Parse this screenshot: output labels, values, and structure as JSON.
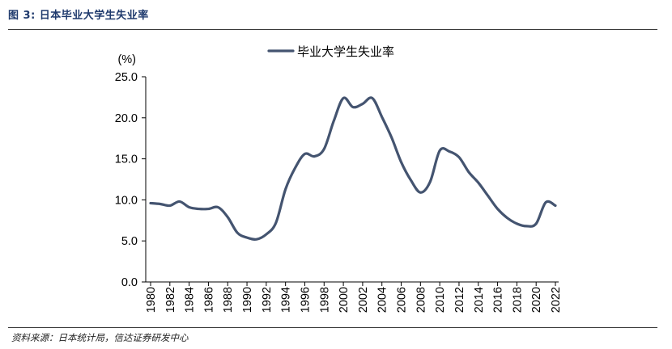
{
  "figure": {
    "title": "图 3:  日本毕业大学生失业率",
    "source": "资料来源：日本统计局，信达证券研发中心"
  },
  "chart_data": {
    "type": "line",
    "ylabel": "(%)",
    "ylim": [
      0,
      25
    ],
    "yticks": [
      "25.0",
      "20.0",
      "15.0",
      "10.0",
      "5.0",
      "0.0"
    ],
    "xlim": [
      1980,
      2022
    ],
    "xticks": [
      "1980",
      "1982",
      "1984",
      "1986",
      "1988",
      "1990",
      "1992",
      "1994",
      "1996",
      "1998",
      "2000",
      "2002",
      "2004",
      "2006",
      "2008",
      "2010",
      "2012",
      "2014",
      "2016",
      "2018",
      "2020",
      "2022"
    ],
    "grid": false,
    "legend_position": "top-center",
    "series": [
      {
        "name": "毕业大学生失业率",
        "color": "#445470",
        "x": [
          1980,
          1981,
          1982,
          1983,
          1984,
          1985,
          1986,
          1987,
          1988,
          1989,
          1990,
          1991,
          1992,
          1993,
          1994,
          1995,
          1996,
          1997,
          1998,
          1999,
          2000,
          2001,
          2002,
          2003,
          2004,
          2005,
          2006,
          2007,
          2008,
          2009,
          2010,
          2011,
          2012,
          2013,
          2014,
          2015,
          2016,
          2017,
          2018,
          2019,
          2020,
          2021,
          2022
        ],
        "y": [
          9.6,
          9.5,
          9.3,
          9.8,
          9.1,
          8.9,
          8.9,
          9.1,
          7.9,
          6.0,
          5.4,
          5.2,
          5.8,
          7.2,
          11.3,
          13.9,
          15.6,
          15.3,
          16.2,
          19.6,
          22.4,
          21.3,
          21.7,
          22.4,
          20.1,
          17.6,
          14.6,
          12.4,
          10.9,
          12.2,
          16.0,
          15.9,
          15.2,
          13.4,
          12.1,
          10.5,
          8.9,
          7.8,
          7.1,
          6.8,
          7.1,
          9.7,
          9.3
        ]
      }
    ]
  }
}
